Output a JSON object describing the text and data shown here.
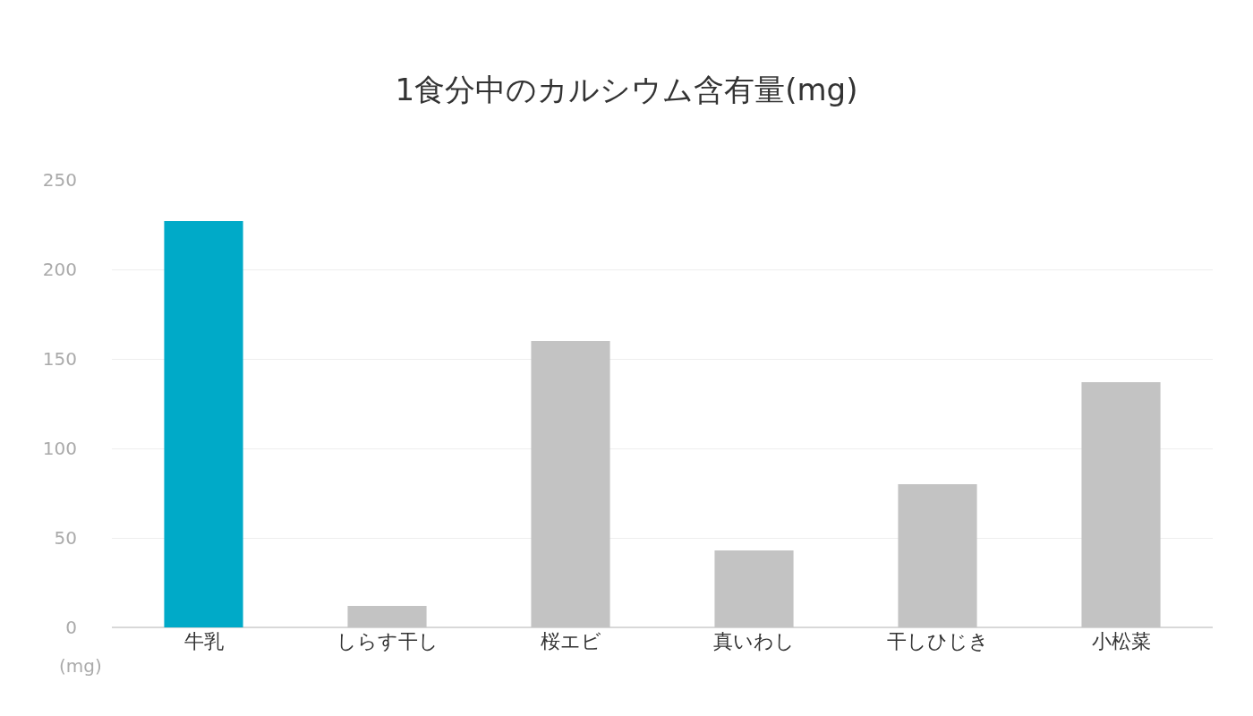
{
  "chart_data": {
    "type": "bar",
    "title": "1食分中のカルシウム含有量(mg)",
    "categories": [
      "牛乳",
      "しらす干し",
      "桜エビ",
      "真いわし",
      "干しひじき",
      "小松菜"
    ],
    "values": [
      227,
      12,
      160,
      43,
      80,
      137
    ],
    "colors": [
      "#00aac8",
      "#c3c3c3",
      "#c3c3c3",
      "#c3c3c3",
      "#c3c3c3",
      "#c3c3c3"
    ],
    "ylim": [
      0,
      250
    ],
    "yticks": [
      0,
      50,
      100,
      150,
      200,
      250
    ],
    "grid": "y",
    "annotations": [
      "(mg)"
    ]
  }
}
